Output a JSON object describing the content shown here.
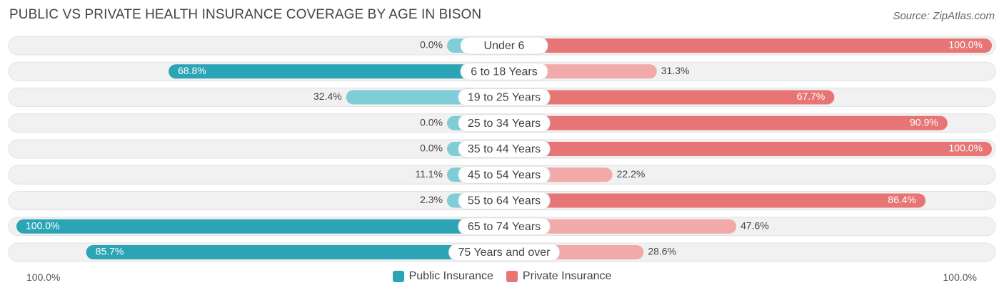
{
  "title": "PUBLIC VS PRIVATE HEALTH INSURANCE COVERAGE BY AGE IN BISON",
  "source": "Source: ZipAtlas.com",
  "colors": {
    "public": "#2ba5b5",
    "public_light": "#7fcdd6",
    "private": "#e87575",
    "private_light": "#f1a9a9",
    "row_bg": "#f1f1f1"
  },
  "axis": {
    "left_label": "100.0%",
    "right_label": "100.0%"
  },
  "chart_data": {
    "type": "bar",
    "orientation": "horizontal-diverging",
    "categories": [
      "Under 6",
      "6 to 18 Years",
      "19 to 25 Years",
      "25 to 34 Years",
      "35 to 44 Years",
      "45 to 54 Years",
      "55 to 64 Years",
      "65 to 74 Years",
      "75 Years and over"
    ],
    "series": [
      {
        "name": "Public Insurance",
        "values": [
          0.0,
          68.8,
          32.4,
          0.0,
          0.0,
          11.1,
          2.3,
          100.0,
          85.7
        ],
        "labels": [
          "0.0%",
          "68.8%",
          "32.4%",
          "0.0%",
          "0.0%",
          "11.1%",
          "2.3%",
          "100.0%",
          "85.7%"
        ]
      },
      {
        "name": "Private Insurance",
        "values": [
          100.0,
          31.3,
          67.7,
          90.9,
          100.0,
          22.2,
          86.4,
          47.6,
          28.6
        ],
        "labels": [
          "100.0%",
          "31.3%",
          "67.7%",
          "90.9%",
          "100.0%",
          "22.2%",
          "86.4%",
          "47.6%",
          "28.6%"
        ]
      }
    ],
    "xlim": [
      -100,
      100
    ],
    "legend": "bottom-center"
  }
}
